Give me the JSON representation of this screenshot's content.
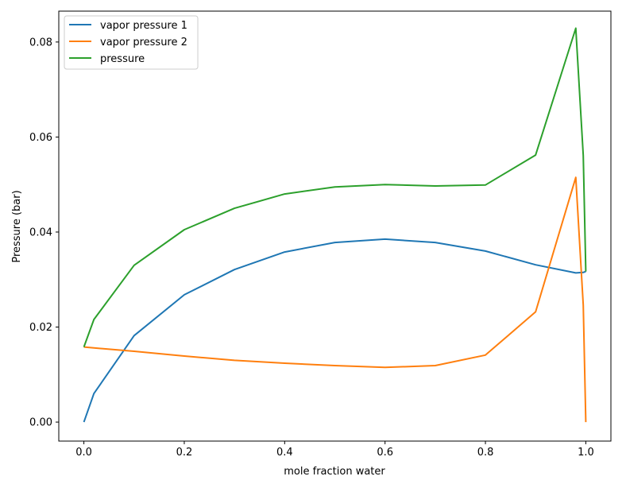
{
  "chart_data": {
    "type": "line",
    "title": "",
    "xlabel": "mole fraction water",
    "ylabel": "Pressure (bar)",
    "xlim": [
      -0.05,
      1.05
    ],
    "ylim": [
      -0.004,
      0.0865
    ],
    "xticks": [
      "0.0",
      "0.2",
      "0.4",
      "0.6",
      "0.8",
      "1.0"
    ],
    "yticks": [
      "0.00",
      "0.02",
      "0.04",
      "0.06",
      "0.08"
    ],
    "grid": false,
    "legend_position": "upper-left",
    "x": [
      0,
      0.02,
      0.1,
      0.2,
      0.3,
      0.4,
      0.5,
      0.6,
      0.7,
      0.8,
      0.9,
      0.98,
      0.995,
      1.0
    ],
    "series": [
      {
        "name": "vapor pressure 1",
        "color": "#1f77b4",
        "values": [
          0,
          0.006,
          0.0182,
          0.0268,
          0.0321,
          0.0358,
          0.0378,
          0.0385,
          0.0378,
          0.036,
          0.0331,
          0.0314,
          0.0315,
          0.0317
        ]
      },
      {
        "name": "vapor pressure 2",
        "color": "#ff7f0e",
        "values": [
          0.0158,
          0.0156,
          0.0149,
          0.0139,
          0.013,
          0.0124,
          0.0119,
          0.0115,
          0.0119,
          0.0141,
          0.0232,
          0.0515,
          0.0246,
          0
        ]
      },
      {
        "name": "pressure",
        "color": "#2ca02c",
        "values": [
          0.0158,
          0.0216,
          0.033,
          0.0405,
          0.045,
          0.048,
          0.0495,
          0.05,
          0.0497,
          0.0499,
          0.0562,
          0.0829,
          0.0561,
          0.0317
        ]
      }
    ]
  }
}
